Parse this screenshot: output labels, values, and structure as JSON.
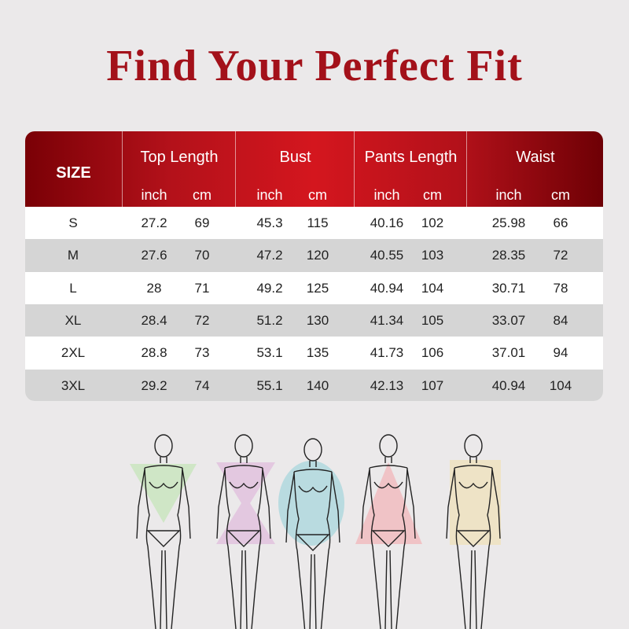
{
  "title": "Find Your Perfect Fit",
  "table": {
    "size_header": "SIZE",
    "columns": [
      {
        "label": "Top Length",
        "units": [
          "inch",
          "cm"
        ]
      },
      {
        "label": "Bust",
        "units": [
          "inch",
          "cm"
        ]
      },
      {
        "label": "Pants Length",
        "units": [
          "inch",
          "cm"
        ]
      },
      {
        "label": "Waist",
        "units": [
          "inch",
          "cm"
        ]
      }
    ],
    "rows": [
      [
        "S",
        "27.2",
        "69",
        "45.3",
        "115",
        "40.16",
        "102",
        "25.98",
        "66"
      ],
      [
        "M",
        "27.6",
        "70",
        "47.2",
        "120",
        "40.55",
        "103",
        "28.35",
        "72"
      ],
      [
        "L",
        "28",
        "71",
        "49.2",
        "125",
        "40.94",
        "104",
        "30.71",
        "78"
      ],
      [
        "XL",
        "28.4",
        "72",
        "51.2",
        "130",
        "41.34",
        "105",
        "33.07",
        "84"
      ],
      [
        "2XL",
        "28.8",
        "73",
        "53.1",
        "135",
        "41.73",
        "106",
        "37.01",
        "94"
      ],
      [
        "3XL",
        "29.2",
        "74",
        "55.1",
        "140",
        "42.13",
        "107",
        "40.94",
        "104"
      ]
    ]
  },
  "colors": {
    "accent": "#a3111a",
    "header_mid": "#d4161e",
    "row_alt": "#d5d5d5"
  },
  "body_shapes": [
    {
      "shape": "inverted-triangle",
      "color": "#cfe6c6"
    },
    {
      "shape": "hourglass",
      "color": "#e3c8e0"
    },
    {
      "shape": "oval",
      "color": "#b9dbe0"
    },
    {
      "shape": "triangle",
      "color": "#f0c3c6"
    },
    {
      "shape": "rectangle",
      "color": "#eee3c6"
    }
  ]
}
